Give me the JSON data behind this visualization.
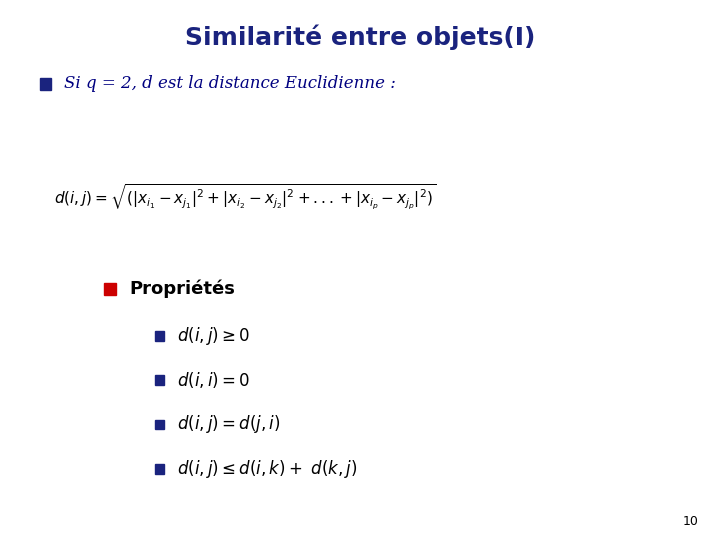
{
  "title": "Similarité entre objets(I)",
  "title_color": "#1a237e",
  "title_fontsize": 18,
  "background_color": "#ffffff",
  "bullet1_text": "Si q = 2, d est la distance Euclidienne :",
  "bullet1_color": "#000080",
  "bullet1_square_color": "#1a237e",
  "formula": "d(i,j)=\\sqrt{(|x_{i_1}-x_{j_1}|^2+|x_{i_2}-x_{j_2}|^2+...+|x_{i_p}-x_{j_p}|^2)}",
  "formula_color": "#000000",
  "sub_bullet_square_color": "#cc0000",
  "sub_bullet_label": "Propriétés",
  "sub_bullet_label_color": "#000000",
  "sub_bullet_label_fontsize": 13,
  "items": [
    "$d(i,j)\\geq 0$",
    "$d(i,i) = 0$",
    "$d(i,j) = d(j,i)$",
    "$d(i,j)\\leq d(i,k)+\\ d(k,j)$"
  ],
  "items_color": "#000000",
  "items_fontsize": 12,
  "page_number": "10",
  "page_number_color": "#000000",
  "page_number_fontsize": 9
}
